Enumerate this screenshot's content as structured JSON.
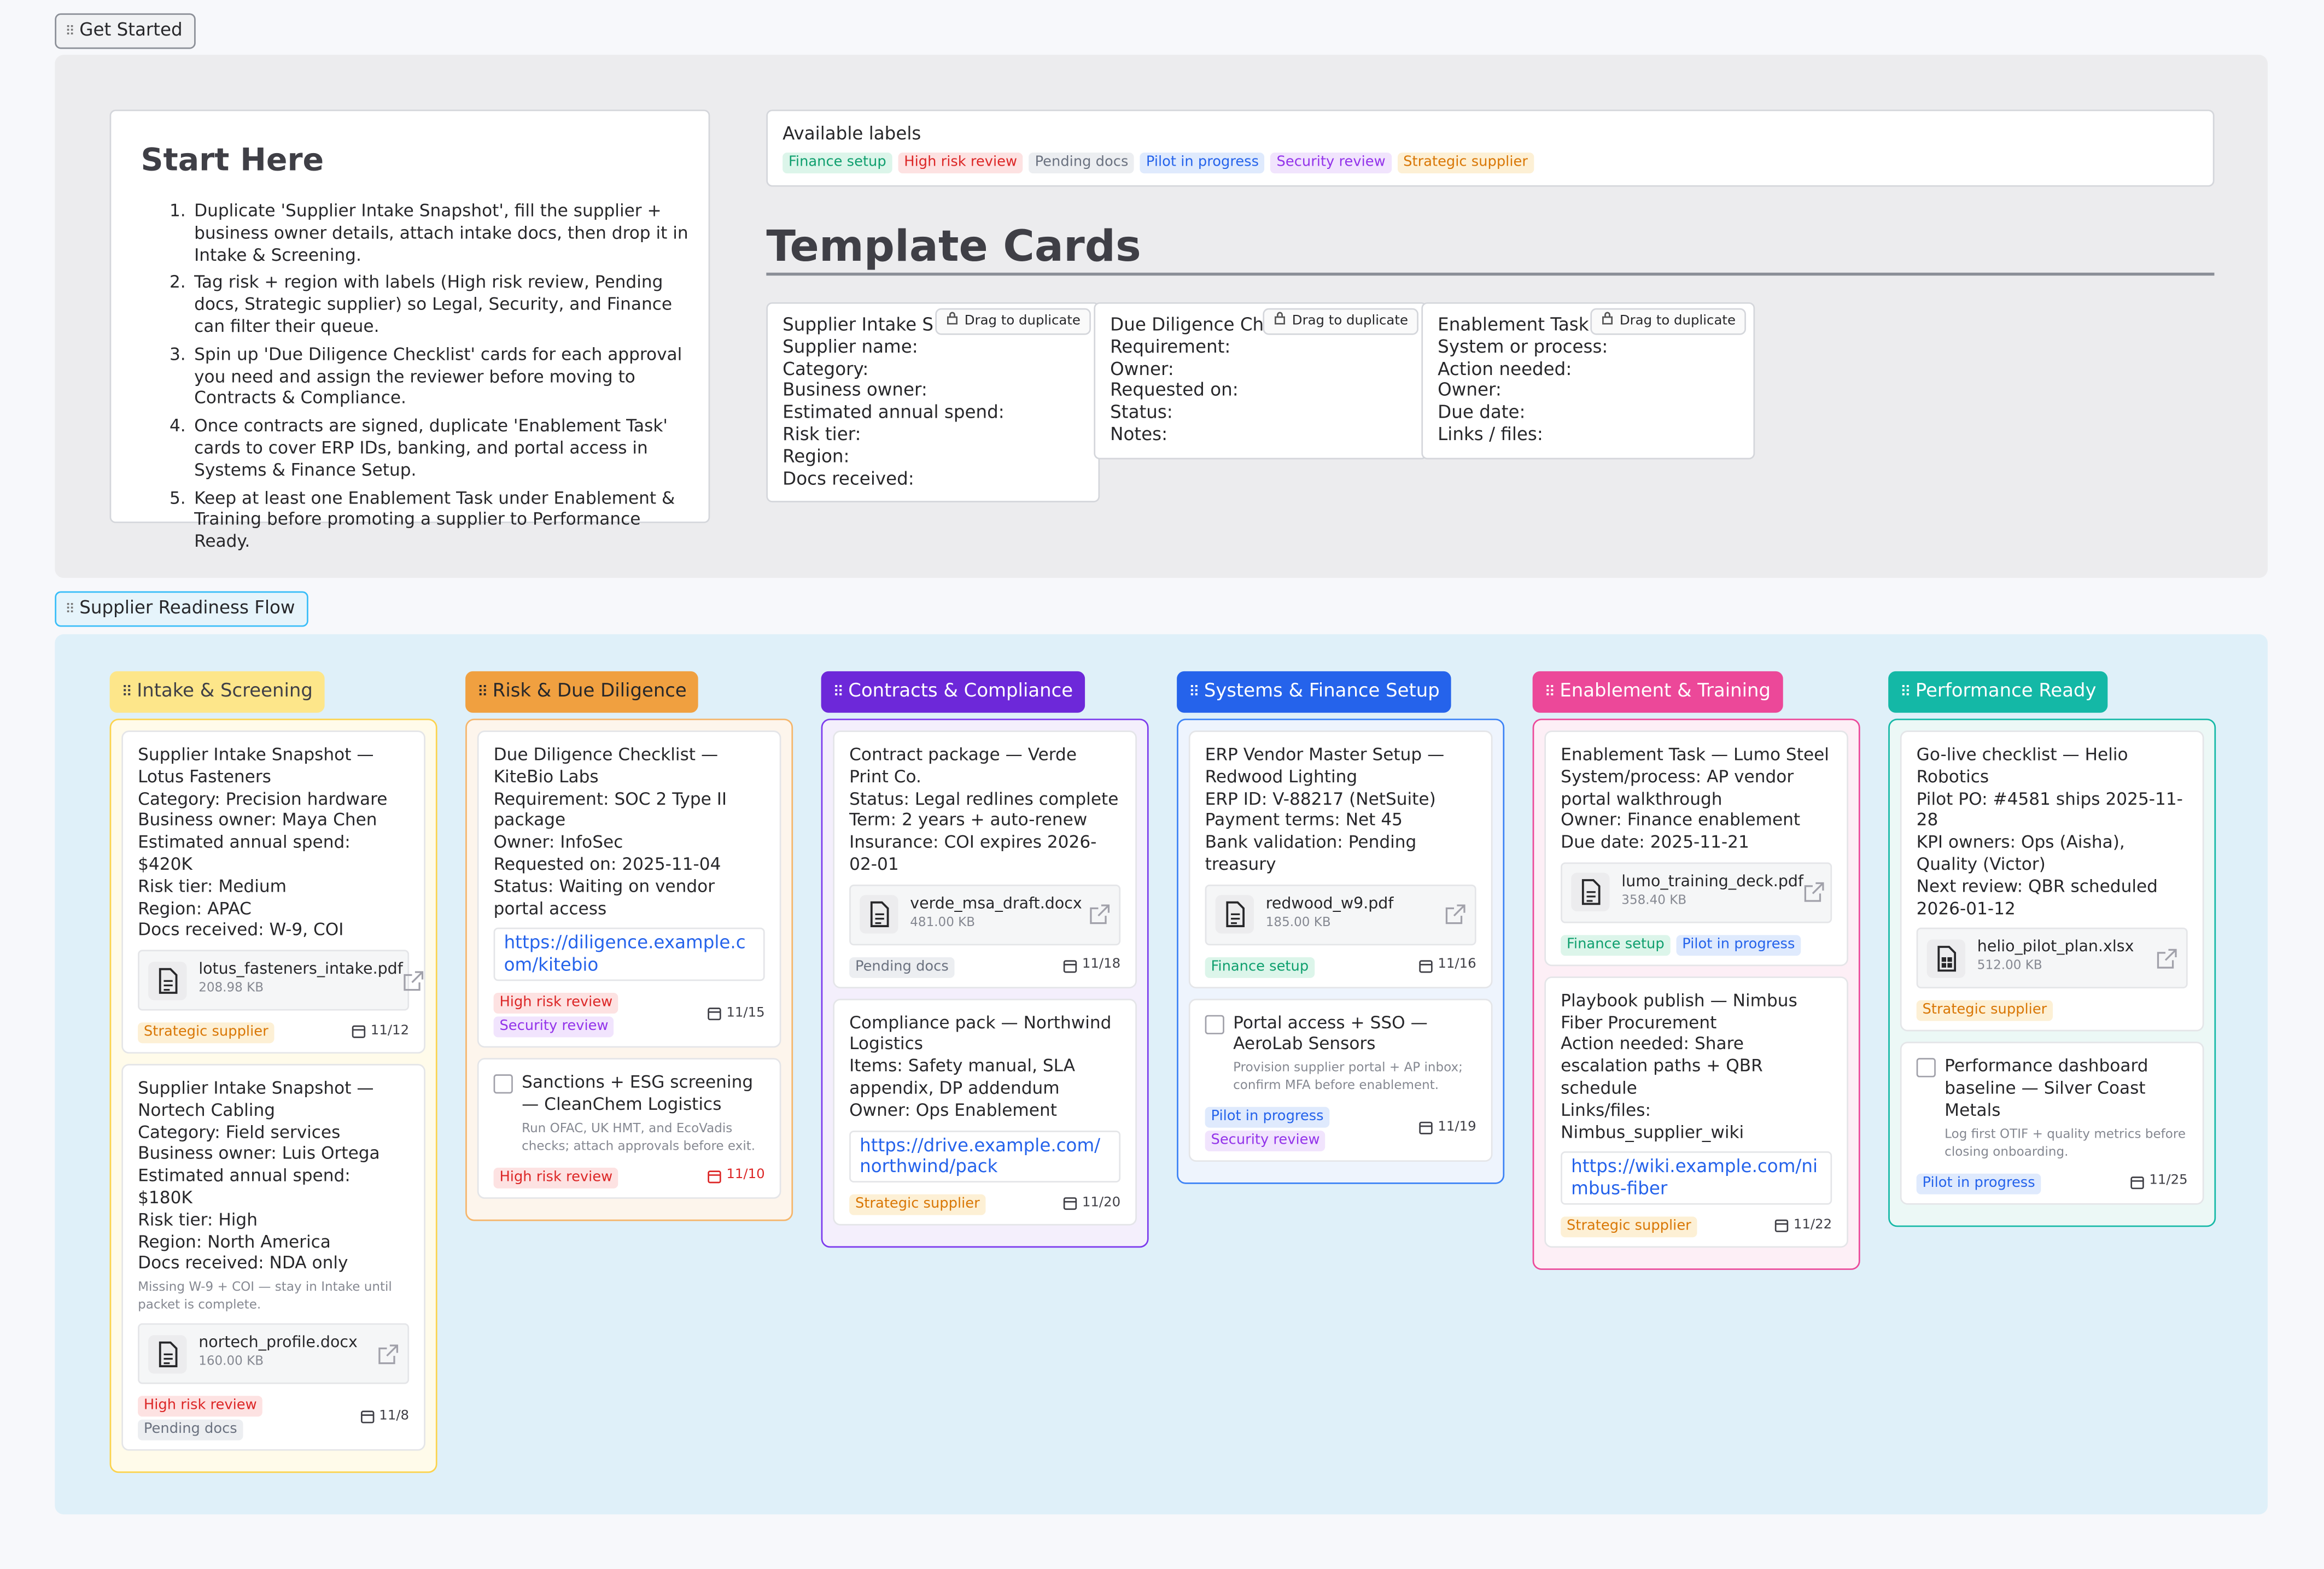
{
  "get_started": {
    "label": "Get Started",
    "start_here": {
      "title": "Start Here",
      "steps": [
        "Duplicate 'Supplier Intake Snapshot', fill the supplier + business owner details, attach intake docs, then drop it in Intake & Screening.",
        "Tag risk + region with labels (High risk review, Pending docs, Strategic supplier) so Legal, Security, and Finance can filter their queue.",
        "Spin up 'Due Diligence Checklist' cards for each approval you need and assign the reviewer before moving to Contracts & Compliance.",
        "Once contracts are signed, duplicate 'Enablement Task' cards to cover ERP IDs, banking, and portal access in Systems & Finance Setup.",
        "Keep at least one Enablement Task under Enablement & Training before promoting a supplier to Performance Ready."
      ]
    },
    "available_labels": {
      "title": "Available labels",
      "labels": [
        {
          "text": "Finance setup",
          "color": "#0f9f6e",
          "bg": "#dcf5ea"
        },
        {
          "text": "High risk review",
          "color": "#dc2626",
          "bg": "#fde2e2"
        },
        {
          "text": "Pending docs",
          "color": "#6b7280",
          "bg": "#eceef1"
        },
        {
          "text": "Pilot in progress",
          "color": "#2563eb",
          "bg": "#dfeafd"
        },
        {
          "text": "Security review",
          "color": "#9333ea",
          "bg": "#f1e4fd"
        },
        {
          "text": "Strategic supplier",
          "color": "#d97706",
          "bg": "#fdf0d5"
        }
      ]
    },
    "template_cards": {
      "title": "Template Cards",
      "cards": [
        {
          "title": "Supplier Intake S",
          "button": "Drag to duplicate",
          "fields": [
            "Supplier name:",
            "Category:",
            "Business owner:",
            "Estimated annual spend:",
            "Risk tier:",
            "Region:",
            "Docs received:"
          ]
        },
        {
          "title": "Due Diligence Ch",
          "button": "Drag to duplicate",
          "fields": [
            "Requirement:",
            "Owner:",
            "Requested on:",
            "Status:",
            "Notes:"
          ]
        },
        {
          "title": "Enablement Task",
          "button": "Drag to duplicate",
          "fields": [
            "System or process:",
            "Action needed:",
            "Owner:",
            "Due date:",
            "Links / files:"
          ]
        }
      ]
    }
  },
  "flow": {
    "label": "Supplier Readiness Flow",
    "columns": [
      {
        "title": "Intake & Screening",
        "color": "#fde68a",
        "text_color": "#3f3f46",
        "border": "#fcd34d",
        "bg": "#fffbea",
        "cards": [
          {
            "lines": [
              "Supplier Intake Snapshot — Lotus Fasteners",
              "Category: Precision hardware",
              "Business owner: Maya Chen",
              "Estimated annual spend: $420K",
              "Risk tier: Medium",
              "Region: APAC",
              "Docs received: W-9, COI"
            ],
            "attachment": {
              "name": "lotus_fasteners_intake.pdf",
              "size": "208.98 KB",
              "kind": "doc"
            },
            "labels": [
              "Strategic supplier"
            ],
            "date": "11/12"
          },
          {
            "lines": [
              "Supplier Intake Snapshot — Nortech Cabling",
              "Category: Field services",
              "Business owner: Luis Ortega",
              "Estimated annual spend: $180K",
              "Risk tier: High",
              "Region: North America",
              "Docs received: NDA only"
            ],
            "note": "Missing W-9 + COI — stay in Intake until packet is complete.",
            "attachment": {
              "name": "nortech_profile.docx",
              "size": "160.00 KB",
              "kind": "doc"
            },
            "labels": [
              "High risk review",
              "Pending docs"
            ],
            "date": "11/8"
          }
        ]
      },
      {
        "title": "Risk & Due Diligence",
        "color": "#f0a040",
        "text_color": "#27272a",
        "border": "#f5b56a",
        "bg": "#fdf5ec",
        "cards": [
          {
            "lines": [
              "Due Diligence Checklist — KiteBio Labs",
              "Requirement: SOC 2 Type II package",
              "Owner: InfoSec",
              "Requested on: 2025-11-04",
              "Status: Waiting on vendor portal access"
            ],
            "link": "https://diligence.example.com/kitebio",
            "labels": [
              "High risk review",
              "Security review"
            ],
            "date": "11/15"
          },
          {
            "checkbox": true,
            "lines": [
              "Sanctions + ESG screening — CleanChem Logistics"
            ],
            "note": "Run OFAC, UK HMT, and EcoVadis checks; attach approvals before exit.",
            "labels": [
              "High risk review"
            ],
            "date": "11/10",
            "overdue": true
          }
        ]
      },
      {
        "title": "Contracts & Compliance",
        "color": "#6d28d9",
        "text_color": "#ffffff",
        "border": "#7c3aed",
        "bg": "#f4effc",
        "cards": [
          {
            "lines": [
              "Contract package — Verde Print Co.",
              "Status: Legal redlines complete",
              "Term: 2 years + auto-renew",
              "Insurance: COI expires 2026-02-01"
            ],
            "attachment": {
              "name": "verde_msa_draft.docx",
              "size": "481.00 KB",
              "kind": "doc"
            },
            "labels": [
              "Pending docs"
            ],
            "date": "11/18"
          },
          {
            "lines": [
              "Compliance pack — Northwind Logistics",
              "Items: Safety manual, SLA appendix, DP addendum",
              "Owner: Ops Enablement"
            ],
            "link": "https://drive.example.com/northwind/pack",
            "labels": [
              "Strategic supplier"
            ],
            "date": "11/20"
          }
        ]
      },
      {
        "title": "Systems & Finance Setup",
        "color": "#2563eb",
        "text_color": "#ffffff",
        "border": "#3b82f6",
        "bg": "#eef4fd",
        "cards": [
          {
            "lines": [
              "ERP Vendor Master Setup — Redwood Lighting",
              "ERP ID: V-88217 (NetSuite)",
              "Payment terms: Net 45",
              "Bank validation: Pending treasury"
            ],
            "attachment": {
              "name": "redwood_w9.pdf",
              "size": "185.00 KB",
              "kind": "doc"
            },
            "labels": [
              "Finance setup"
            ],
            "date": "11/16"
          },
          {
            "checkbox": true,
            "lines": [
              "Portal access + SSO — AeroLab Sensors"
            ],
            "note": "Provision supplier portal + AP inbox; confirm MFA before enablement.",
            "labels": [
              "Pilot in progress",
              "Security review"
            ],
            "date": "11/19"
          }
        ]
      },
      {
        "title": "Enablement & Training",
        "color": "#ec4899",
        "text_color": "#ffffff",
        "border": "#ec4899",
        "bg": "#fdeff6",
        "cards": [
          {
            "lines": [
              "Enablement Task — Lumo Steel",
              "System/process: AP vendor portal walkthrough",
              "Owner: Finance enablement",
              "Due date: 2025-11-21"
            ],
            "attachment": {
              "name": "lumo_training_deck.pdf",
              "size": "358.40 KB",
              "kind": "doc"
            },
            "labels": [
              "Finance setup",
              "Pilot in progress"
            ]
          },
          {
            "lines": [
              "Playbook publish — Nimbus Fiber Procurement",
              "Action needed: Share escalation paths + QBR schedule",
              "Links/files: Nimbus_supplier_wiki"
            ],
            "link": "https://wiki.example.com/nimbus-fiber",
            "labels": [
              "Strategic supplier"
            ],
            "date": "11/22"
          }
        ]
      },
      {
        "title": "Performance Ready",
        "color": "#14b8a6",
        "text_color": "#ffffff",
        "border": "#14b8a6",
        "bg": "#ecf8f6",
        "cards": [
          {
            "lines": [
              "Go-live checklist — Helio Robotics",
              "Pilot PO: #4581 ships 2025-11-28",
              "KPI owners: Ops (Aisha), Quality (Victor)",
              "Next review: QBR scheduled 2026-01-12"
            ],
            "attachment": {
              "name": "helio_pilot_plan.xlsx",
              "size": "512.00 KB",
              "kind": "sheet"
            },
            "labels": [
              "Strategic supplier"
            ]
          },
          {
            "checkbox": true,
            "lines": [
              "Performance dashboard baseline — Silver Coast Metals"
            ],
            "note": "Log first OTIF + quality metrics before closing onboarding.",
            "labels": [
              "Pilot in progress"
            ],
            "date": "11/25"
          }
        ]
      }
    ]
  }
}
